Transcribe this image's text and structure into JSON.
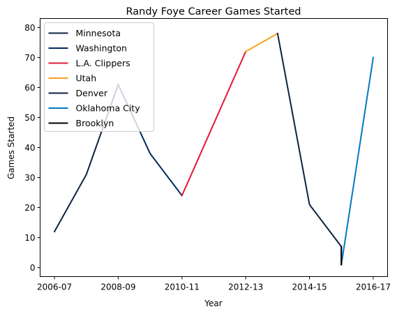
{
  "chart_data": {
    "type": "line",
    "title": "Randy Foye Career Games Started",
    "xlabel": "Year",
    "ylabel": "Games Started",
    "ylim": [
      -3,
      83
    ],
    "yticks": [
      0,
      10,
      20,
      30,
      40,
      50,
      60,
      70,
      80
    ],
    "xlim": [
      -0.45,
      10.45
    ],
    "xticks": [
      {
        "pos": 0,
        "label": "2006-07"
      },
      {
        "pos": 2,
        "label": "2008-09"
      },
      {
        "pos": 4,
        "label": "2010-11"
      },
      {
        "pos": 6,
        "label": "2012-13"
      },
      {
        "pos": 8,
        "label": "2014-15"
      },
      {
        "pos": 10,
        "label": "2016-17"
      }
    ],
    "legend_position": "upper-left",
    "series": [
      {
        "name": "Minnesota",
        "color": "#0C2340",
        "points": [
          [
            0,
            12
          ],
          [
            1,
            31
          ],
          [
            2,
            61
          ]
        ]
      },
      {
        "name": "Washington",
        "color": "#002B5C",
        "points": [
          [
            2,
            61
          ],
          [
            3,
            38
          ],
          [
            4,
            24
          ]
        ]
      },
      {
        "name": "L.A. Clippers",
        "color": "#E31837",
        "points": [
          [
            4,
            24
          ],
          [
            5,
            48
          ],
          [
            6,
            72
          ]
        ]
      },
      {
        "name": "Utah",
        "color": "#F9A01B",
        "points": [
          [
            6,
            72
          ],
          [
            7,
            78
          ]
        ]
      },
      {
        "name": "Denver",
        "color": "#0E2240",
        "points": [
          [
            7,
            78
          ],
          [
            8,
            21
          ],
          [
            9,
            7
          ],
          [
            9,
            1
          ]
        ]
      },
      {
        "name": "Oklahoma City",
        "color": "#007AC1",
        "points": [
          [
            9,
            1
          ],
          [
            10,
            70
          ]
        ]
      },
      {
        "name": "Brooklyn",
        "color": "#000000",
        "points": [
          [
            9,
            1
          ],
          [
            9,
            7
          ]
        ]
      }
    ]
  }
}
